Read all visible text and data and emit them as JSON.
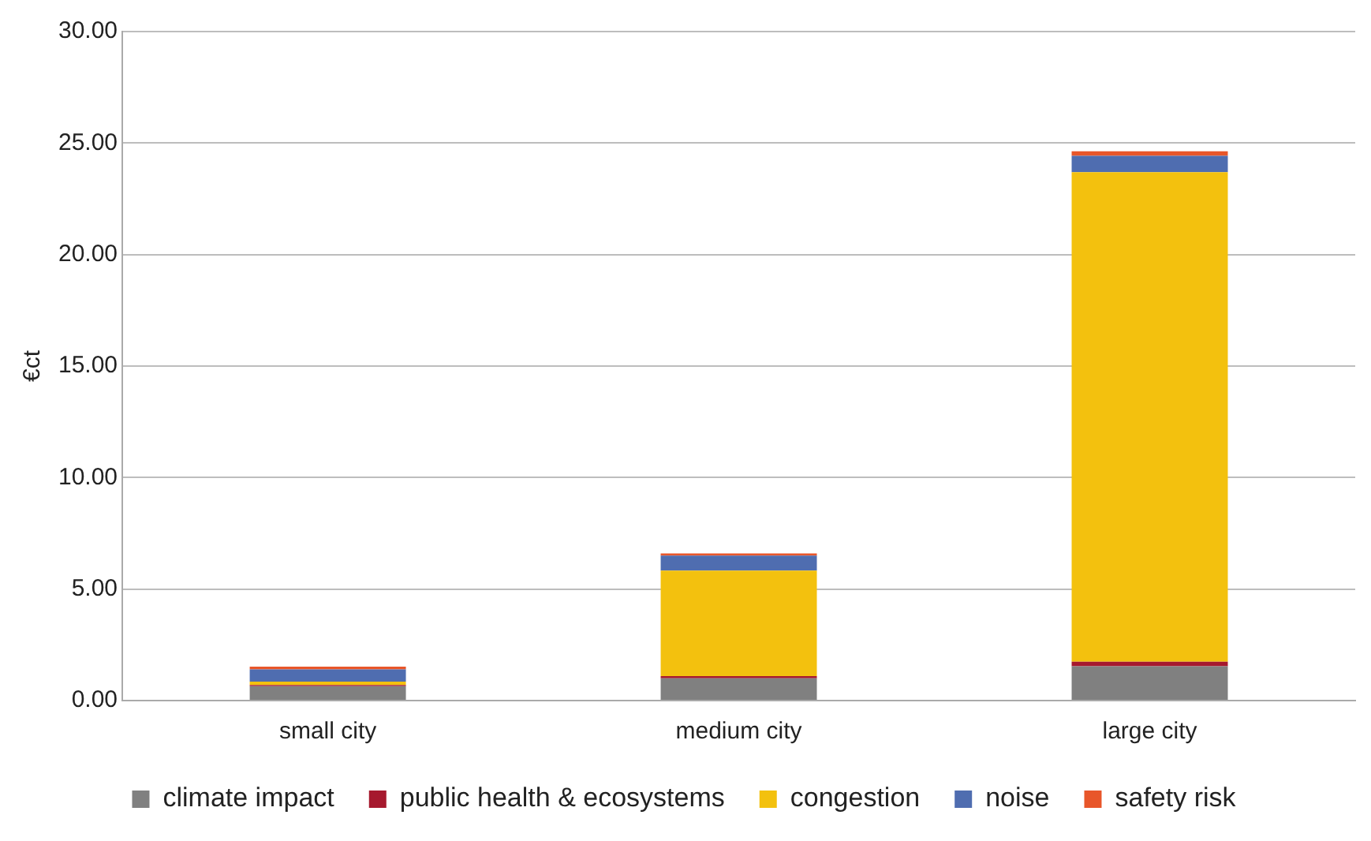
{
  "chart_data": {
    "type": "bar",
    "stacked": true,
    "ylabel": "€ct",
    "categories": [
      "small city",
      "medium city",
      "large city"
    ],
    "series": [
      {
        "name": "climate impact",
        "color": "#808080",
        "values": [
          0.65,
          1.0,
          1.54
        ]
      },
      {
        "name": "public health & ecosystems",
        "color": "#a6192e",
        "values": [
          0.05,
          0.1,
          0.2
        ]
      },
      {
        "name": "congestion",
        "color": "#f3c10e",
        "values": [
          0.15,
          4.73,
          21.95
        ]
      },
      {
        "name": "noise",
        "color": "#4f6db0",
        "values": [
          0.55,
          0.67,
          0.74
        ]
      },
      {
        "name": "safety risk",
        "color": "#e8562a",
        "values": [
          0.12,
          0.1,
          0.2
        ]
      }
    ],
    "ylim": [
      0,
      30
    ],
    "yticks": [
      {
        "value": 0,
        "label": "0.00"
      },
      {
        "value": 5,
        "label": "5.00"
      },
      {
        "value": 10,
        "label": "10.00"
      },
      {
        "value": 15,
        "label": "15.00"
      },
      {
        "value": 20,
        "label": "20.00"
      },
      {
        "value": 25,
        "label": "25.00"
      },
      {
        "value": 30,
        "label": "30.00"
      }
    ],
    "grid": "y",
    "legend": "bottom"
  }
}
